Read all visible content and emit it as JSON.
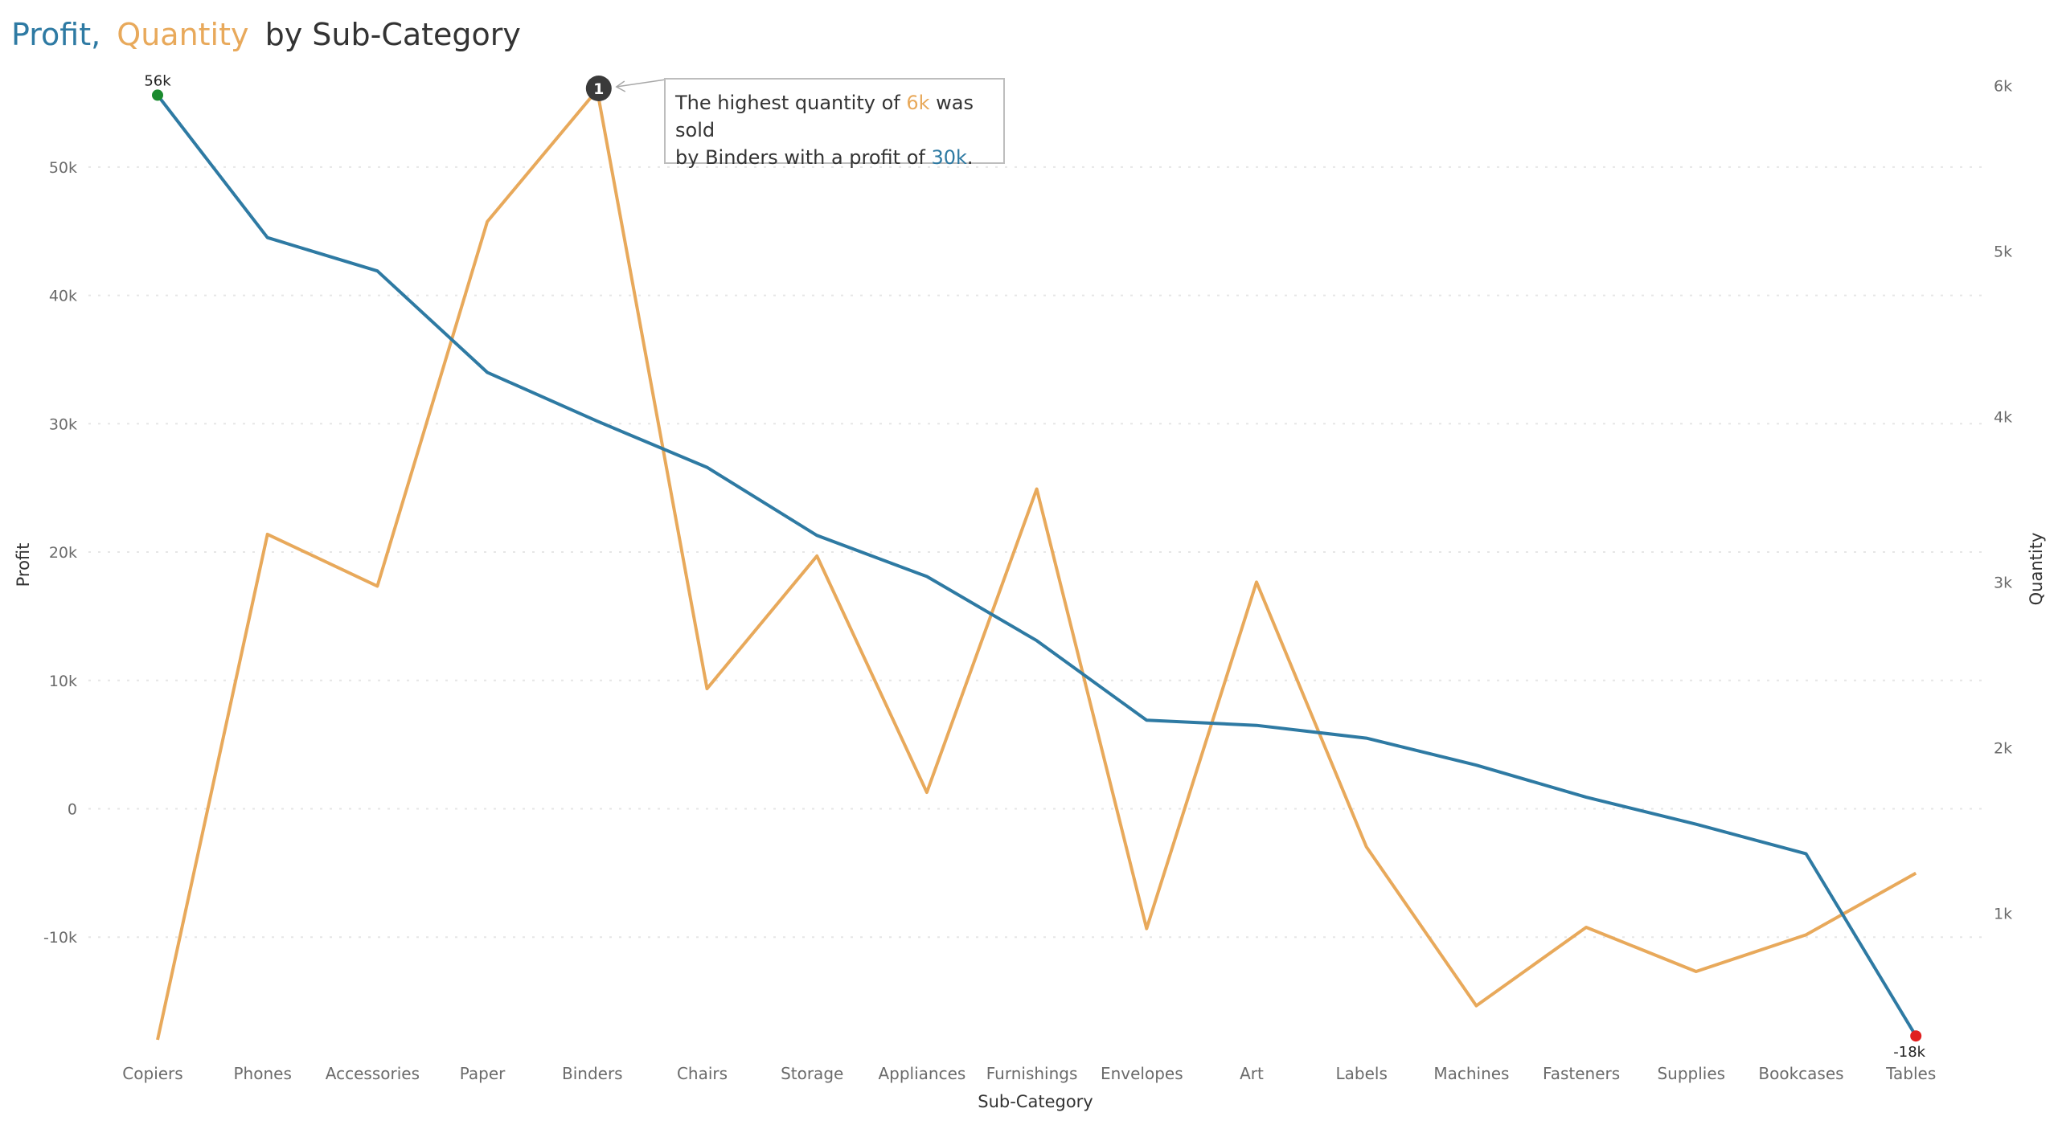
{
  "colors": {
    "profit": "#2E7AA3",
    "quantity": "#E8A95B",
    "max_marker": "#1A8A2E",
    "min_marker": "#E02020",
    "title_text": "#333333",
    "badge": "#3A3A3A"
  },
  "title": {
    "part1": "Profit,",
    "part2": "Quantity",
    "part3": "by Sub-Category"
  },
  "annotation": {
    "badge": "1",
    "line1_prefix": "The highest quantity of",
    "line1_value": "6k",
    "line1_suffix": "was sold",
    "line2_prefix": "by Binders with a profit of",
    "line2_value": "30k",
    "line2_suffix": "."
  },
  "chart_data": {
    "type": "line",
    "xlabel": "Sub-Category",
    "ylabel": "Profit",
    "y2label": "Quantity",
    "categories": [
      "Copiers",
      "Phones",
      "Accessories",
      "Paper",
      "Binders",
      "Chairs",
      "Storage",
      "Appliances",
      "Furnishings",
      "Envelopes",
      "Art",
      "Labels",
      "Machines",
      "Fasteners",
      "Supplies",
      "Bookcases",
      "Tables"
    ],
    "ylim": [
      -18000,
      56000
    ],
    "y2lim": [
      234,
      5974
    ],
    "yticks": [
      -10000,
      0,
      10000,
      20000,
      30000,
      40000,
      50000
    ],
    "yticklabels": [
      "-10k",
      "0",
      "10k",
      "20k",
      "30k",
      "40k",
      "50k"
    ],
    "y2ticks": [
      1000,
      2000,
      3000,
      4000,
      5000,
      6000
    ],
    "y2ticklabels": [
      "1k",
      "2k",
      "3k",
      "4k",
      "5k",
      "6k"
    ],
    "grid": true,
    "series": [
      {
        "name": "Profit",
        "axis": "left",
        "values": [
          55600,
          44500,
          41900,
          34000,
          30200,
          26600,
          21300,
          18100,
          13100,
          6900,
          6500,
          5500,
          3400,
          900,
          -1200,
          -3500,
          -17700
        ]
      },
      {
        "name": "Quantity",
        "axis": "right",
        "values": [
          234,
          3289,
          2976,
          5178,
          5974,
          2356,
          3158,
          1729,
          3563,
          906,
          3000,
          1400,
          440,
          914,
          647,
          868,
          1241
        ]
      }
    ],
    "point_labels": [
      {
        "series": "Profit",
        "index": 0,
        "text": "56k",
        "position": "above"
      },
      {
        "series": "Profit",
        "index": 16,
        "text": "-18k",
        "position": "below"
      }
    ]
  }
}
